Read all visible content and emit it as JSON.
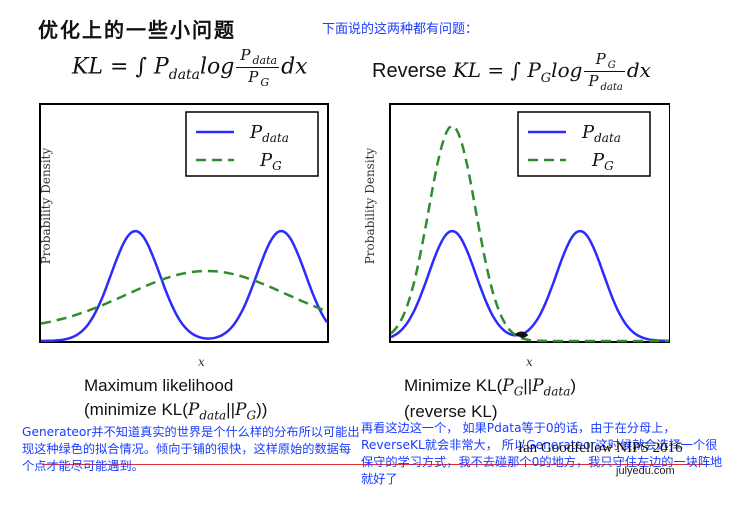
{
  "header": {
    "title": "优化上的一些小问题",
    "note": "下面说的这两种都有问题："
  },
  "formulas": {
    "left": {
      "lhs": "KL = ∫ P",
      "sub1": "data",
      "log": "log",
      "num": "P",
      "num_sub": "data",
      "den": "P",
      "den_sub": "G",
      "tail": "dx"
    },
    "right": {
      "prefix": "Reverse",
      "lhs": " KL = ∫ P",
      "sub1": "G",
      "log": "log",
      "num": "P",
      "num_sub": "G",
      "den": "P",
      "den_sub": "data",
      "tail": "dx"
    }
  },
  "plots": {
    "ylabel": "Probability Density",
    "xlabel": "x",
    "legend": [
      {
        "name": "P",
        "sub": "data",
        "color": "#2b2bff",
        "style": "solid"
      },
      {
        "name": "P",
        "sub": "G",
        "color": "#2e8b2e",
        "style": "dashed"
      }
    ]
  },
  "captions": {
    "left_line1": "Maximum likelihood",
    "left_line2_pre": "(minimize KL(",
    "left_line2_math": "P",
    "left_line2_sub1": "data",
    "left_line2_mid": "||",
    "left_line2_math2": "P",
    "left_line2_sub2": "G",
    "left_line2_post": "))",
    "right_line1_pre": "Minimize KL(",
    "right_line1_math": "P",
    "right_line1_sub1": "G",
    "right_line1_mid": "||",
    "right_line1_math2": "P",
    "right_line1_sub2": "data",
    "right_line1_post": ")",
    "right_line2": "(reverse KL)"
  },
  "notes": {
    "left": "Generateor并不知道真实的世界是个什么样的分布所以可能出现这种绿色的拟合情况。倾向于铺的很快，这样原始的数据每个点才能尽可能遇到。",
    "right": "再看这边这一个， 如果Pdata等于0的话，由于在分母上，ReverseKL就会非常大， 所以Generateor这时候就会选择一个很保守的学习方式，我不去碰那个0的地方，我只守住左边的一块阵地就好了"
  },
  "credit": "Ian Goodfellow NIPS 2016",
  "site": "julyedu.com"
}
